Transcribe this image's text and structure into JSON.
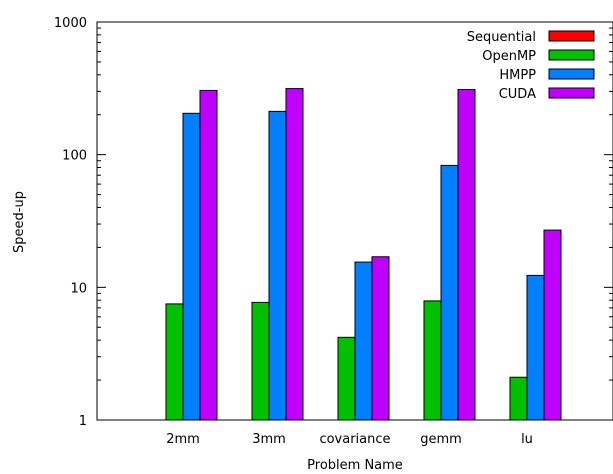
{
  "chart_data": {
    "type": "bar",
    "xlabel": "Problem Name",
    "ylabel": "Speed-up",
    "yscale": "log",
    "ylim": [
      1,
      1000
    ],
    "yticks": [
      "1",
      "10",
      "100",
      "1000"
    ],
    "categories": [
      "2mm",
      "3mm",
      "covariance",
      "gemm",
      "lu"
    ],
    "legend_position": "top-right",
    "grid": false,
    "series": [
      {
        "name": "Sequential",
        "color": "#ff0000",
        "values": [
          1,
          1,
          1,
          1,
          1
        ]
      },
      {
        "name": "OpenMP",
        "color": "#00c000",
        "values": [
          7.5,
          7.7,
          4.2,
          7.9,
          2.1
        ]
      },
      {
        "name": "HMPP",
        "color": "#0080ff",
        "values": [
          205,
          212,
          15.5,
          83,
          12.3
        ]
      },
      {
        "name": "CUDA",
        "color": "#c000ff",
        "values": [
          305,
          315,
          17.0,
          310,
          27
        ]
      }
    ]
  }
}
